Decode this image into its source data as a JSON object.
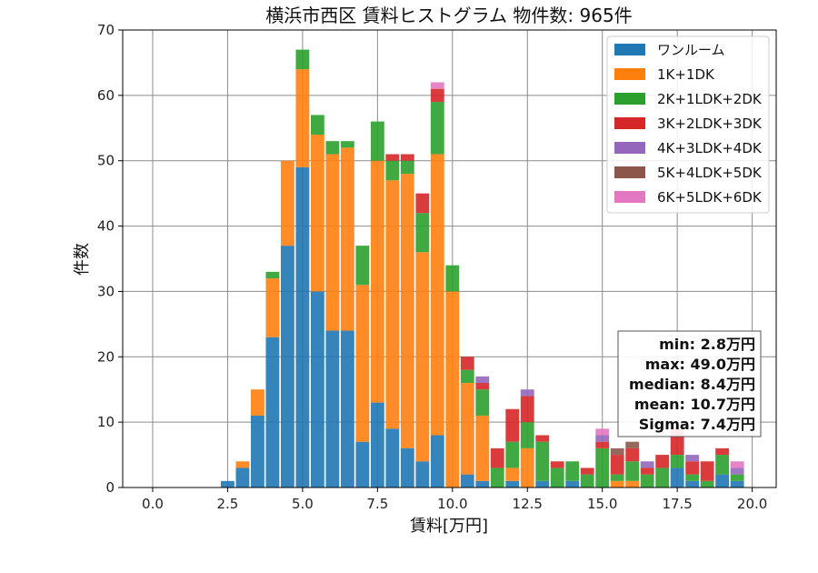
{
  "chart_data": {
    "type": "bar",
    "stacked": true,
    "title": "横浜市西区 賃料ヒストグラム  物件数: 965件",
    "xlabel": "賃料[万円]",
    "ylabel": "件数",
    "xlim": [
      -1.0,
      20.8
    ],
    "ylim": [
      0,
      70
    ],
    "xticks": [
      0,
      2.5,
      5,
      7.5,
      10,
      12.5,
      15,
      17.5,
      20
    ],
    "xtick_labels": [
      "0.0",
      "2.5",
      "5.0",
      "7.5",
      "10.0",
      "12.5",
      "15.0",
      "17.5",
      "20.0"
    ],
    "yticks": [
      0,
      10,
      20,
      30,
      40,
      50,
      60,
      70
    ],
    "ytick_labels": [
      "0",
      "10",
      "20",
      "30",
      "40",
      "50",
      "60",
      "70"
    ],
    "bin_width": 0.5,
    "grid": true,
    "legend_position": "top-right",
    "bins": [
      2.5,
      3.0,
      3.5,
      4.0,
      4.5,
      5.0,
      5.5,
      6.0,
      6.5,
      7.0,
      7.5,
      8.0,
      8.5,
      9.0,
      9.5,
      10.0,
      10.5,
      11.0,
      11.5,
      12.0,
      12.5,
      13.0,
      13.5,
      14.0,
      14.5,
      15.0,
      15.5,
      16.0,
      16.5,
      17.0,
      17.5,
      18.0,
      18.5,
      19.0,
      19.5
    ],
    "series": [
      {
        "name": "ワンルーム",
        "color": "#1f77b4",
        "values": [
          1,
          3,
          11,
          23,
          37,
          49,
          30,
          24,
          24,
          7,
          13,
          9,
          6,
          4,
          8,
          0,
          2,
          1,
          0,
          1,
          0,
          1,
          0,
          1,
          0,
          0,
          0,
          0,
          0,
          0,
          3,
          1,
          0,
          2,
          1
        ]
      },
      {
        "name": "1K+1DK",
        "color": "#ff7f0e",
        "values": [
          0,
          1,
          4,
          9,
          13,
          15,
          24,
          27,
          28,
          24,
          37,
          38,
          42,
          32,
          43,
          30,
          14,
          10,
          0,
          2,
          6,
          0,
          0,
          0,
          0,
          0,
          1,
          1,
          0,
          0,
          0,
          0,
          0,
          0,
          0
        ]
      },
      {
        "name": "2K+1LDK+2DK",
        "color": "#2ca02c",
        "values": [
          0,
          0,
          0,
          1,
          0,
          3,
          3,
          2,
          1,
          6,
          6,
          3,
          2,
          6,
          8,
          4,
          2,
          4,
          3,
          4,
          4,
          6,
          3,
          3,
          2,
          6,
          1,
          3,
          2,
          3,
          2,
          1,
          1,
          3,
          1
        ]
      },
      {
        "name": "3K+2LDK+3DK",
        "color": "#d62728",
        "values": [
          0,
          0,
          0,
          0,
          0,
          0,
          0,
          0,
          0,
          0,
          0,
          1,
          1,
          3,
          2,
          0,
          2,
          1,
          3,
          5,
          4,
          1,
          1,
          0,
          1,
          1,
          3,
          2,
          1,
          2,
          4,
          2,
          3,
          1,
          0
        ]
      },
      {
        "name": "4K+3LDK+4DK",
        "color": "#9467bd",
        "values": [
          0,
          0,
          0,
          0,
          0,
          0,
          0,
          0,
          0,
          0,
          0,
          0,
          0,
          0,
          0,
          0,
          0,
          1,
          0,
          0,
          1,
          0,
          0,
          0,
          0,
          1,
          0,
          0,
          1,
          0,
          0,
          1,
          0,
          0,
          1
        ]
      },
      {
        "name": "5K+4LDK+5DK",
        "color": "#8c564b",
        "values": [
          0,
          0,
          0,
          0,
          0,
          0,
          0,
          0,
          0,
          0,
          0,
          0,
          0,
          0,
          0,
          0,
          0,
          0,
          0,
          0,
          0,
          0,
          0,
          0,
          0,
          0,
          1,
          1,
          0,
          0,
          0,
          0,
          0,
          0,
          0
        ]
      },
      {
        "name": "6K+5LDK+6DK",
        "color": "#e377c2",
        "values": [
          0,
          0,
          0,
          0,
          0,
          0,
          0,
          0,
          0,
          0,
          0,
          0,
          0,
          0,
          1,
          0,
          0,
          0,
          0,
          0,
          0,
          0,
          0,
          0,
          0,
          1,
          0,
          0,
          0,
          0,
          0,
          0,
          0,
          0,
          1
        ]
      }
    ],
    "stats": [
      "min: 2.8万円",
      "max: 49.0万円",
      "median: 8.4万円",
      "mean: 10.7万円",
      "Sigma: 7.4万円"
    ]
  }
}
